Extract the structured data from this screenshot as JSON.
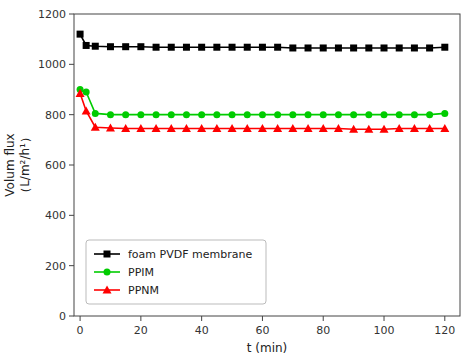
{
  "chart_data": {
    "type": "line",
    "xlabel": "t (min)",
    "ylabel": "Volum flux\n（L/m²/h¹）",
    "x": [
      0,
      2,
      5,
      10,
      15,
      20,
      25,
      30,
      35,
      40,
      45,
      50,
      55,
      60,
      65,
      70,
      75,
      80,
      85,
      90,
      95,
      100,
      105,
      110,
      115,
      120
    ],
    "series": [
      {
        "name": "foam PVDF membrane",
        "color": "#000000",
        "marker": "square",
        "values": [
          1120,
          1075,
          1072,
          1070,
          1070,
          1070,
          1068,
          1068,
          1068,
          1068,
          1068,
          1068,
          1068,
          1068,
          1068,
          1065,
          1065,
          1065,
          1065,
          1065,
          1065,
          1065,
          1065,
          1065,
          1065,
          1068
        ]
      },
      {
        "name": "PPIM",
        "color": "#00cc00",
        "marker": "circle",
        "values": [
          900,
          890,
          805,
          800,
          800,
          800,
          800,
          800,
          800,
          800,
          800,
          800,
          800,
          800,
          800,
          800,
          800,
          800,
          800,
          800,
          800,
          800,
          800,
          800,
          800,
          805
        ]
      },
      {
        "name": "PPNM",
        "color": "#ff0000",
        "marker": "triangle",
        "values": [
          885,
          815,
          750,
          747,
          745,
          745,
          745,
          745,
          745,
          745,
          745,
          745,
          745,
          745,
          745,
          745,
          745,
          745,
          745,
          742,
          742,
          742,
          745,
          745,
          745,
          745
        ]
      }
    ],
    "xlim": [
      -2,
      125
    ],
    "ylim": [
      0,
      1200
    ],
    "xticks": [
      0,
      20,
      40,
      60,
      80,
      100,
      120
    ],
    "yticks": [
      0,
      200,
      400,
      600,
      800,
      1000,
      1200
    ],
    "grid": false,
    "legend": "lower left"
  }
}
